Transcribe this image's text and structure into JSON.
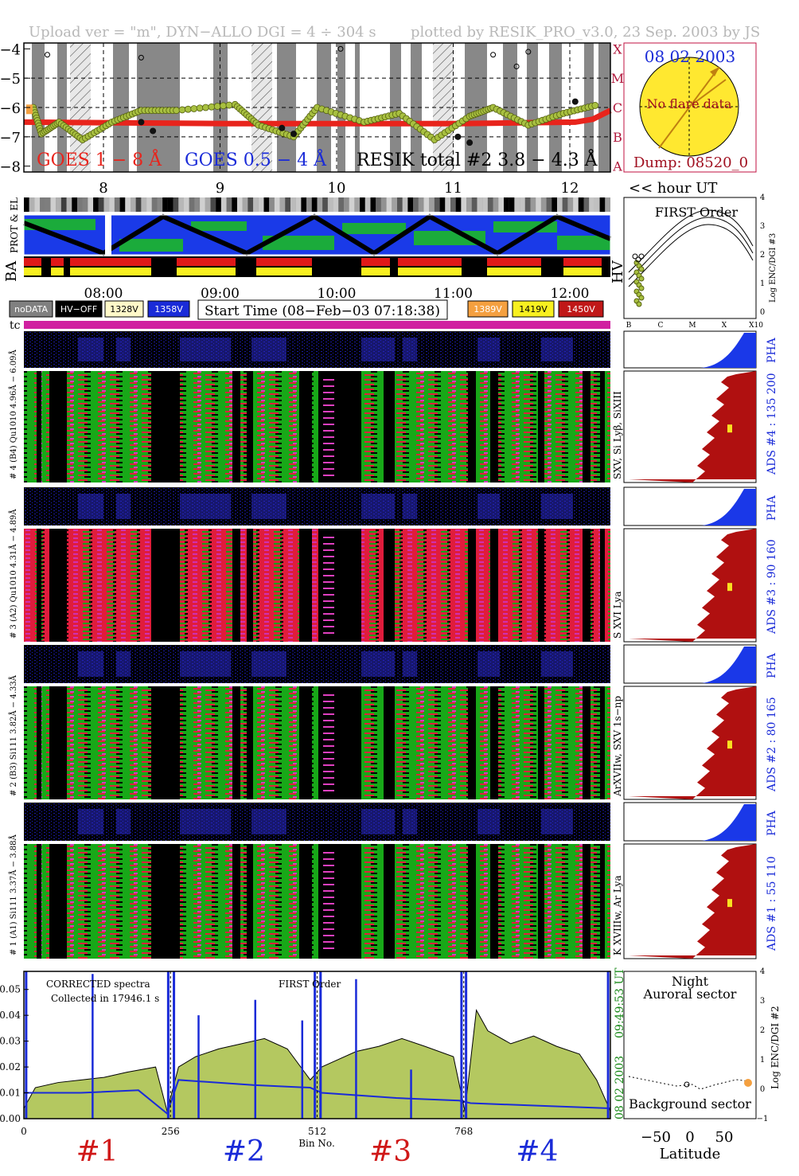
{
  "header": {
    "left": "Upload ver = \"m\", DYN−ALLO DGI =   4 ÷ 304 s",
    "right": "plotted by RESIK_PRO_v3.0, 23 Sep. 2003 by JS"
  },
  "colors": {
    "goes_long": "#e8241c",
    "goes_short": "#1a2bd8",
    "resik": "#a8c040",
    "flare_levels": "#b0183c",
    "sun_fill": "#ffe830",
    "ads_fill": "#b01010",
    "pha_fill": "#1a38e8",
    "spectrum_fill": "#b4c860",
    "spectrum_line": "#1a2bd8",
    "magenta_bar": "#d020a0"
  },
  "goes_panel": {
    "y_ticks": [
      "−4",
      "−5",
      "−6",
      "−7",
      "−8"
    ],
    "flare_classes": [
      "X",
      "M",
      "C",
      "B",
      "A"
    ],
    "hour_ticks": [
      "8",
      "9",
      "10",
      "11",
      "12"
    ],
    "hour_unit": "<< hour UT",
    "legend_long": "GOES 1 − 8 Å",
    "legend_short": "GOES 0.5 − 4 Å",
    "legend_resik": "RESIK total #2  3.8 − 4.3 Å",
    "chart_data": {
      "type": "line",
      "ylabel": "",
      "ylim": [
        -8.2,
        -3.8
      ],
      "xlim": [
        7.3,
        12.3
      ],
      "series": [
        {
          "name": "GOES 1 − 8 Å",
          "x": [
            7.3,
            8.0,
            9.0,
            10.0,
            11.0,
            12.0,
            12.15,
            12.3
          ],
          "y": [
            -6.5,
            -6.52,
            -6.55,
            -6.55,
            -6.55,
            -6.5,
            -6.4,
            -6.1
          ]
        },
        {
          "name": "RESIK total #2  3.8 − 4.3 Å",
          "x": [
            7.38,
            7.45,
            7.6,
            7.8,
            8.05,
            8.3,
            8.6,
            9.1,
            9.3,
            9.6,
            9.8,
            10.2,
            10.5,
            10.8,
            11.1,
            11.3,
            11.6,
            11.9,
            12.2
          ],
          "y": [
            -6.0,
            -6.9,
            -6.5,
            -7.1,
            -6.5,
            -6.1,
            -6.1,
            -5.9,
            -6.6,
            -7.0,
            -6.0,
            -6.5,
            -6.2,
            -7.1,
            -6.3,
            -6.0,
            -6.6,
            -6.2,
            -5.9
          ]
        }
      ]
    }
  },
  "sun_panel": {
    "date": "08 02 2003",
    "message": "No flare data",
    "dump": "Dump: 08520_0"
  },
  "prot_panel": {
    "label_prot": "PROT & EL",
    "label_ba": "BA",
    "label_hv": "HV",
    "time_ticks": [
      "08:00",
      "09:00",
      "10:00",
      "11:00",
      "12:00"
    ]
  },
  "voltage_legend": [
    {
      "label": "noDATA",
      "color": "#808080",
      "text": "#ffffff"
    },
    {
      "label": "HV−OFF",
      "color": "#000000",
      "text": "#ffffff"
    },
    {
      "label": "1328V",
      "color": "#fff8c8",
      "text": "#000000"
    },
    {
      "label": "1358V",
      "color": "#1a2bd8",
      "text": "#ffffff"
    },
    {
      "label": "1389V",
      "color": "#f4a040",
      "text": "#ffffff"
    },
    {
      "label": "1419V",
      "color": "#f8f020",
      "text": "#000000"
    },
    {
      "label": "1450V",
      "color": "#c01818",
      "text": "#ffffff"
    }
  ],
  "start_time": "Start Time (08−Feb−03 07:18:38)",
  "first_order_panel": {
    "title": "FIRST Order",
    "ylabel": "Log ENC/DGI #3",
    "x_ticks": [
      "B",
      "C",
      "M",
      "X",
      "X10"
    ],
    "y_ticks": [
      "0",
      "1",
      "2",
      "3",
      "4"
    ]
  },
  "tc_label": "tc",
  "channels": [
    {
      "label": "# 4 (B4) Qu1010 4.96Å − 6.09Å",
      "ads_label": "ADS #4 :  135 200",
      "lines_label": "SXV, Si Lyβ, SiXIII"
    },
    {
      "label": "# 3 (A2) Qu1010  4.31Å − 4.89Å",
      "ads_label": "ADS #3 :   90 160",
      "lines_label": "S XVI Lya"
    },
    {
      "label": "# 2 (B3) Si111  3.82Å − 4.33Å",
      "ads_label": "ADS #2 :   80 165",
      "lines_label": "ArXVIIw, SXV 1s−np"
    },
    {
      "label": "# 1 (A1) Si111  3.37Å − 3.88Å",
      "ads_label": "ADS #1 :   55 110",
      "lines_label": "K XVIIIw, Ar Lya"
    }
  ],
  "pha_label": "PHA",
  "spectrum_panel": {
    "label_corrected": "CORRECTED spectra",
    "label_collected": "Collected in 17946.1 s",
    "label_order": "FIRST Order",
    "side_date": "08 02 2003",
    "side_time": "09:49:53 UT",
    "x_ticks": [
      "0",
      "256",
      "512",
      "768"
    ],
    "xlabel": "Bin No.",
    "y_ticks": [
      "0.00",
      "0.01",
      "0.02",
      "0.03",
      "0.04",
      "0.05"
    ],
    "chart_data": {
      "type": "area",
      "xlim": [
        0,
        1024
      ],
      "ylim": [
        0,
        0.057
      ],
      "xlabel": "Bin No.",
      "series": [
        {
          "name": "CORRECTED spectra",
          "x": [
            0,
            20,
            60,
            100,
            140,
            180,
            230,
            250,
            270,
            300,
            340,
            380,
            420,
            460,
            500,
            520,
            540,
            580,
            620,
            660,
            700,
            750,
            770,
            790,
            810,
            850,
            890,
            930,
            970,
            1000,
            1024
          ],
          "y": [
            0.004,
            0.012,
            0.014,
            0.015,
            0.016,
            0.018,
            0.02,
            0.003,
            0.02,
            0.024,
            0.027,
            0.029,
            0.031,
            0.027,
            0.015,
            0.02,
            0.022,
            0.026,
            0.028,
            0.031,
            0.028,
            0.024,
            0.003,
            0.042,
            0.034,
            0.029,
            0.032,
            0.028,
            0.025,
            0.015,
            0.003
          ]
        },
        {
          "name": "spectrum_blue",
          "x": [
            0,
            100,
            200,
            250,
            270,
            400,
            500,
            520,
            650,
            760,
            780,
            900,
            1024
          ],
          "y": [
            0.01,
            0.01,
            0.011,
            0.002,
            0.015,
            0.013,
            0.012,
            0.01,
            0.008,
            0.007,
            0.006,
            0.005,
            0.004
          ]
        }
      ]
    }
  },
  "section_labels": [
    {
      "label": "#1",
      "color": "#d01818"
    },
    {
      "label": "#2",
      "color": "#1a2bd8"
    },
    {
      "label": "#3",
      "color": "#d01818"
    },
    {
      "label": "#4",
      "color": "#1a2bd8"
    }
  ],
  "latitude_panel": {
    "title1": "Night",
    "title2": "Auroral sector",
    "bottom": "Background sector",
    "ylabel": "Log ENC/DGI #2",
    "xlabel": "Latitude",
    "x_ticks": [
      "−50",
      "0",
      "50"
    ],
    "y_ticks": [
      "−1",
      "0",
      "1",
      "2",
      "3",
      "4"
    ]
  }
}
